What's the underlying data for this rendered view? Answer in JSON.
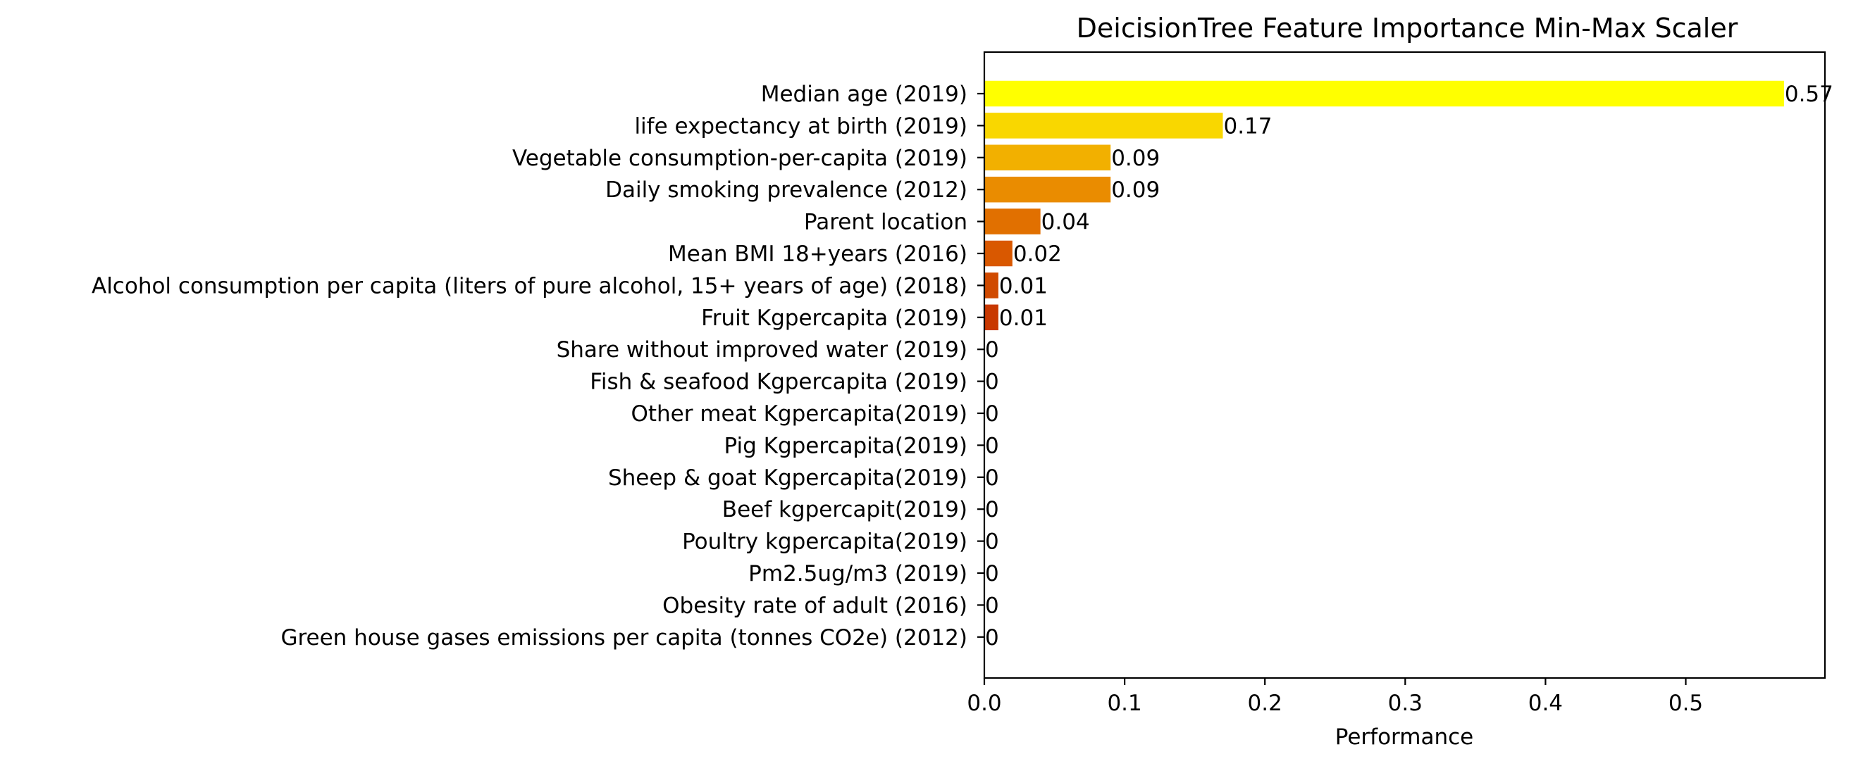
{
  "chart_data": {
    "type": "bar",
    "orientation": "horizontal",
    "title": "DeicisionTree Feature Importance Min-Max Scaler",
    "xlabel": "Performance",
    "ylabel": "",
    "xlim": [
      0,
      0.6
    ],
    "xticks": [
      0.0,
      0.1,
      0.2,
      0.3,
      0.4,
      0.5
    ],
    "xtick_labels": [
      "0.0",
      "0.1",
      "0.2",
      "0.3",
      "0.4",
      "0.5"
    ],
    "grid": false,
    "legend": "none",
    "categories": [
      "Median age (2019)",
      "life expectancy at birth (2019)",
      "Vegetable consumption-per-capita (2019)",
      "Daily smoking prevalence (2012)",
      "Parent location",
      "Mean BMI 18+years (2016)",
      "Alcohol consumption per capita (liters of pure alcohol, 15+ years of age) (2018) ",
      "Fruit Kgpercapita (2019)",
      "Share without improved water (2019)",
      "Fish & seafood Kgpercapita (2019)",
      "Other meat Kgpercapita(2019)",
      "Pig Kgpercapita(2019)",
      "Sheep & goat Kgpercapita(2019)",
      "Beef kgpercapit(2019)",
      "Poultry kgpercapita(2019)",
      "Pm2.5ug/m3 (2019)",
      "Obesity rate of adult (2016)",
      "Green house gases emissions per capita (tonnes CO2e) (2012)"
    ],
    "values": [
      0.57,
      0.17,
      0.09,
      0.09,
      0.04,
      0.02,
      0.01,
      0.01,
      0,
      0,
      0,
      0,
      0,
      0,
      0,
      0,
      0,
      0
    ],
    "value_labels": [
      "0.57",
      "0.17",
      "0.09",
      "0.09",
      "0.04",
      "0.02",
      "0.01",
      "0.01",
      "0",
      "0",
      "0",
      "0",
      "0",
      "0",
      "0",
      "0",
      "0",
      "0"
    ],
    "colors": [
      "#ffff00",
      "#f9d700",
      "#f2b000",
      "#ea8c00",
      "#e17000",
      "#d95800",
      "#d04a00",
      "#c83800",
      "#c02a00",
      "#b82000",
      "#b01800",
      "#a81200",
      "#a00e00",
      "#980a00",
      "#900800",
      "#880600",
      "#800400",
      "#780200"
    ]
  }
}
